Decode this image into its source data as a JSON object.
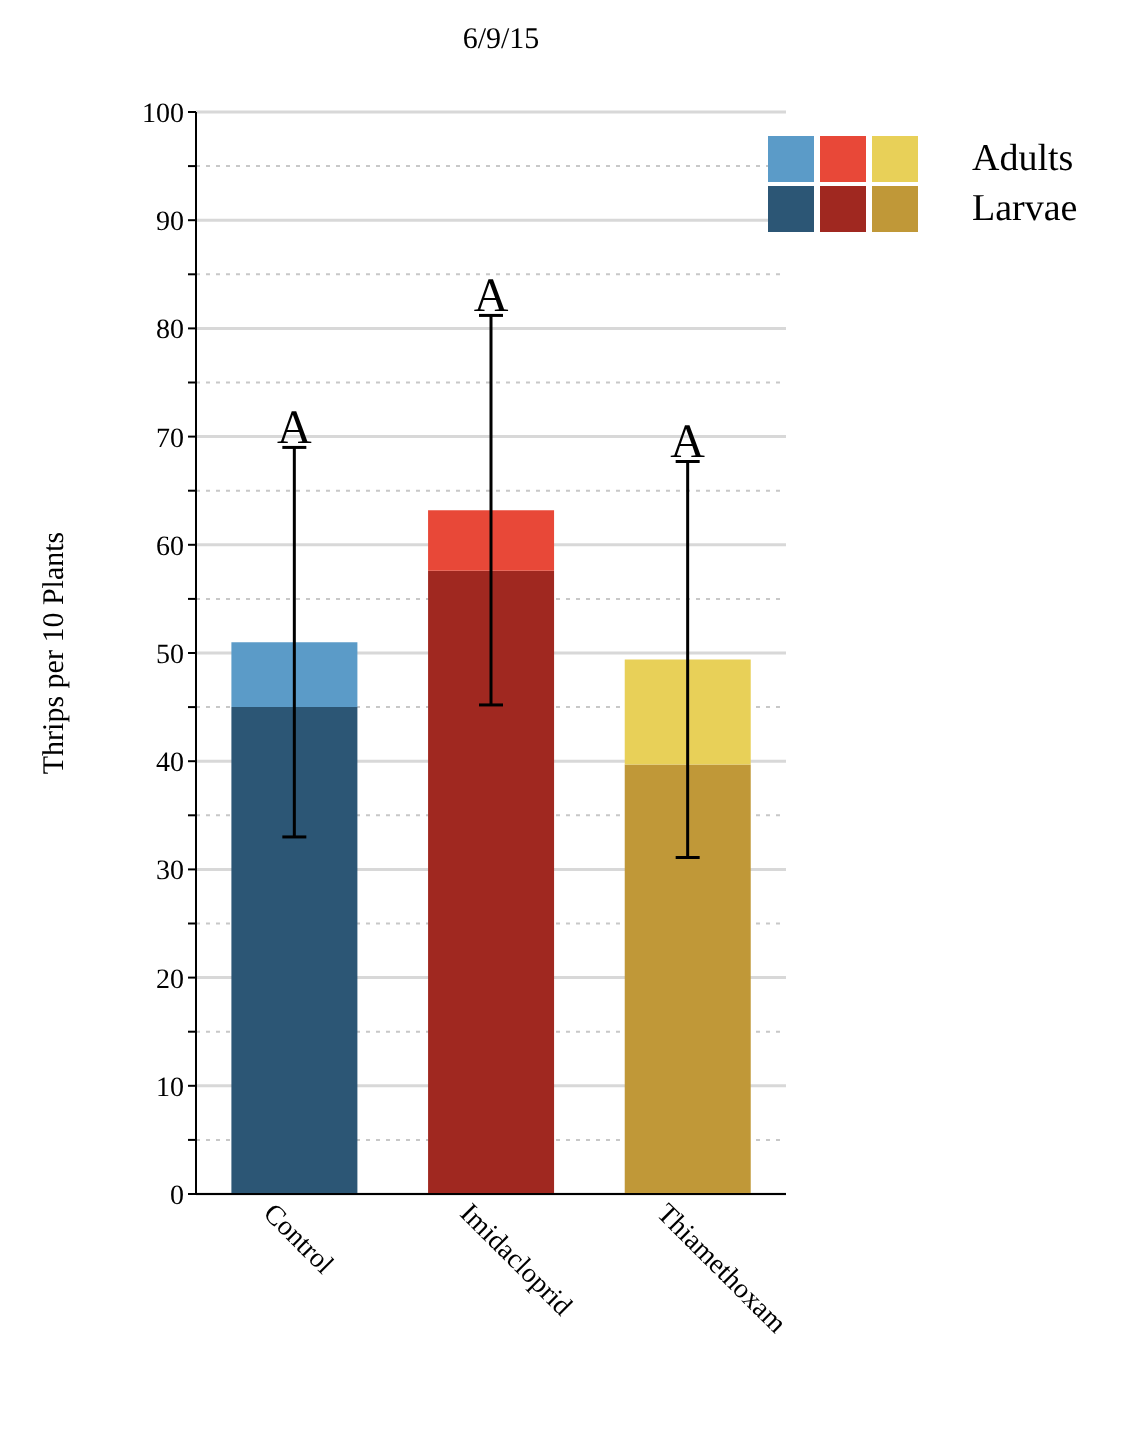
{
  "chart_data": {
    "type": "bar",
    "title": "6/9/15",
    "ylabel": "Thrips per 10 Plants",
    "categories": [
      "Control",
      "Imidacloprid",
      "Thiamethoxam"
    ],
    "stacked": true,
    "series": [
      {
        "name": "Larvae",
        "colors": [
          "#2c5675",
          "#a02820",
          "#c09838"
        ],
        "values": [
          45,
          57.6,
          39.7
        ]
      },
      {
        "name": "Adults",
        "colors": [
          "#5b9bc8",
          "#e84838",
          "#e8d058"
        ],
        "values": [
          6,
          5.6,
          9.7
        ],
        "errors": [
          18,
          18,
          18.3
        ]
      }
    ],
    "ylim": [
      0,
      100
    ],
    "yticks": [
      0,
      {
        "value": 5,
        "label": null
      },
      10,
      {
        "value": 15,
        "label": null
      },
      20,
      {
        "value": 25,
        "label": null
      },
      30,
      {
        "value": 35,
        "label": null
      },
      40,
      {
        "value": 45,
        "label": null
      },
      50,
      {
        "value": 55,
        "label": null
      },
      60,
      {
        "value": 65,
        "label": null
      },
      70,
      {
        "value": 75,
        "label": null
      },
      80,
      {
        "value": 85,
        "label": null
      },
      90,
      {
        "value": 95,
        "label": null
      },
      100
    ],
    "grid": "y",
    "legend": "top right",
    "annotations": [
      "A",
      "A",
      "A"
    ]
  }
}
